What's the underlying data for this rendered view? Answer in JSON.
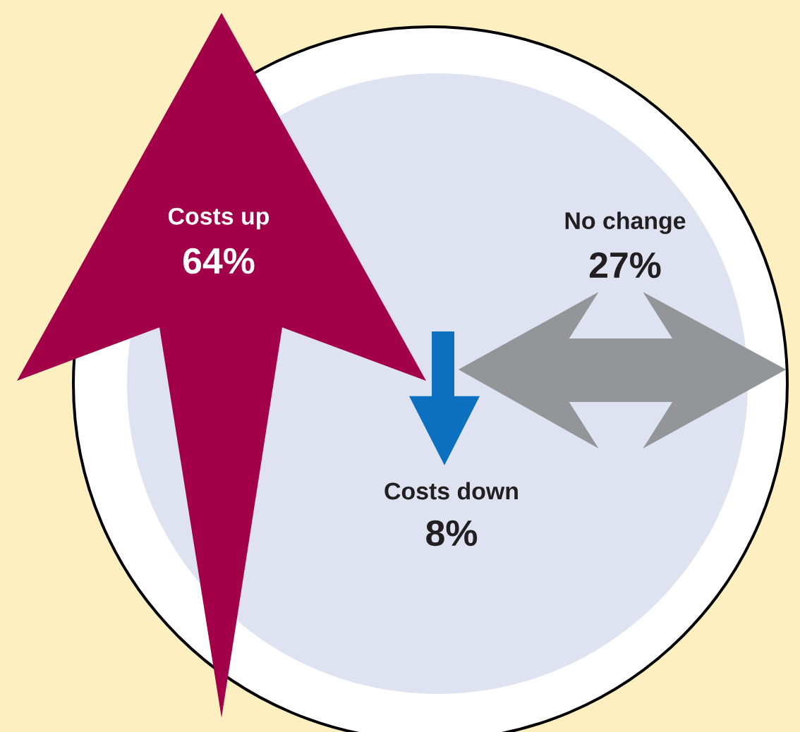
{
  "chart_data": {
    "type": "other",
    "categories": [
      "Costs up",
      "No change",
      "Costs down"
    ],
    "values": [
      64,
      27,
      8
    ],
    "value_labels": [
      "64%",
      "27%",
      "8%"
    ],
    "colors": [
      "#a3004a",
      "#939598",
      "#0b70bf"
    ]
  }
}
